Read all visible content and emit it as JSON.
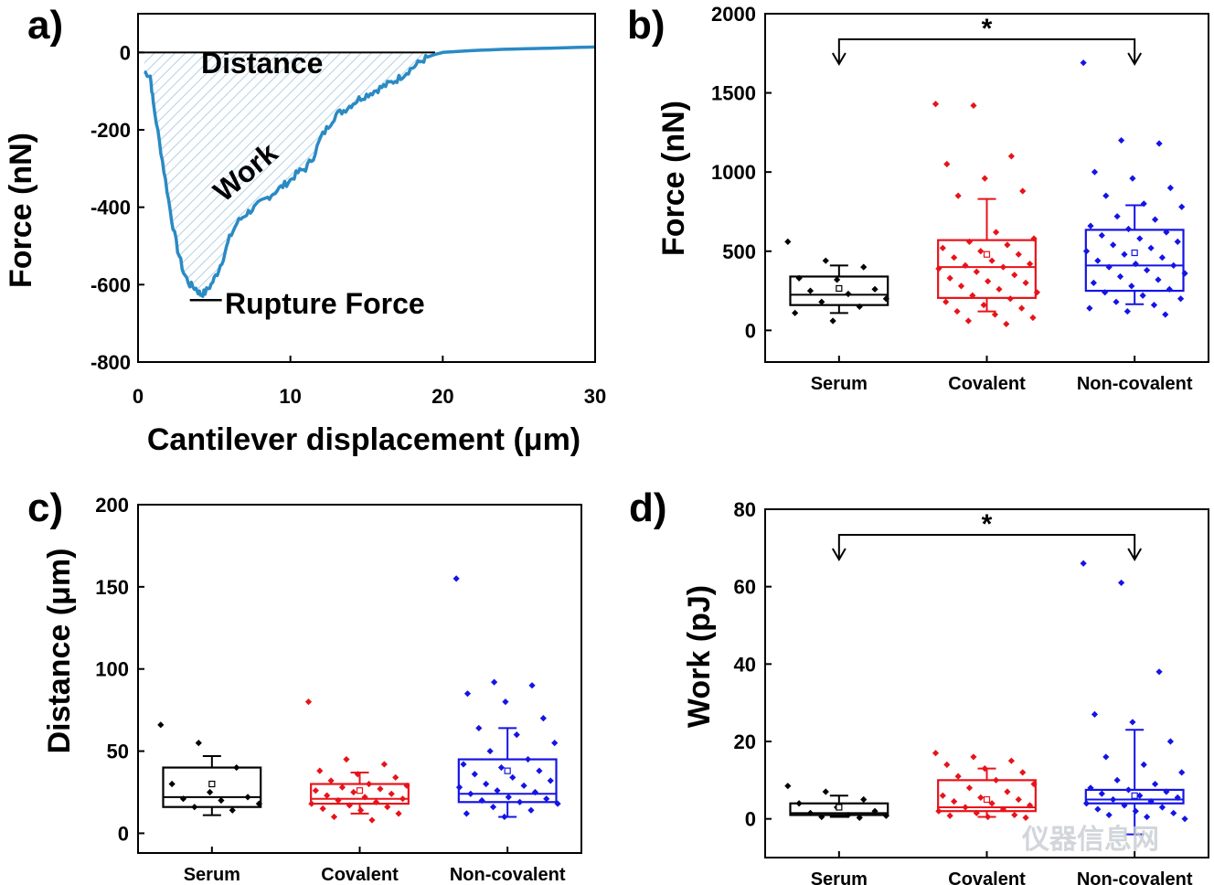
{
  "colors": {
    "serum": "#000000",
    "covalent": "#e8131a",
    "noncovalent": "#1414e6",
    "curve": "#2a8ac4",
    "hatch": "#9cc6e2"
  },
  "watermark": "仪器信息网",
  "chart_data": [
    {
      "panel": "a)",
      "type": "line",
      "xlabel": "Cantilever displacement (μm)",
      "ylabel": "Force (nN)",
      "xlim": [
        0,
        30
      ],
      "ylim": [
        -800,
        100
      ],
      "xticks": [
        0,
        10,
        20,
        30
      ],
      "yticks": [
        0,
        -200,
        -400,
        -600,
        -800
      ],
      "annotations": {
        "distance": "Distance",
        "work": "Work",
        "rupture": "Rupture Force"
      },
      "rupture_force": -640,
      "zero_crossing": 19.5,
      "series": [
        {
          "name": "force curve",
          "x": [
            0.4,
            0.8,
            1.0,
            1.4,
            1.8,
            2.2,
            2.6,
            3.0,
            3.4,
            3.8,
            4.1,
            4.4,
            4.8,
            5.2,
            5.6,
            6.0,
            6.5,
            7.0,
            7.5,
            8.0,
            8.5,
            9.0,
            9.5,
            10.0,
            10.5,
            11.0,
            11.5,
            12.0,
            12.5,
            13.0,
            13.5,
            14.0,
            14.5,
            15.0,
            15.5,
            16.0,
            16.5,
            17.0,
            17.5,
            18.0,
            18.5,
            19.0,
            19.5,
            20.0,
            22.0,
            24.0,
            26.0,
            28.0,
            30.0
          ],
          "y": [
            -50,
            -60,
            -130,
            -230,
            -330,
            -430,
            -510,
            -570,
            -600,
            -610,
            -625,
            -620,
            -600,
            -570,
            -530,
            -480,
            -440,
            -420,
            -405,
            -390,
            -375,
            -360,
            -345,
            -330,
            -310,
            -300,
            -270,
            -220,
            -190,
            -160,
            -150,
            -135,
            -120,
            -110,
            -100,
            -90,
            -80,
            -70,
            -55,
            -40,
            -25,
            -12,
            -5,
            0,
            5,
            8,
            10,
            12,
            14
          ]
        }
      ]
    },
    {
      "panel": "b)",
      "type": "box",
      "ylabel": "Force (nN)",
      "ylim": [
        -200,
        2000
      ],
      "yticks": [
        0,
        500,
        1000,
        1500,
        2000
      ],
      "categories": [
        "Serum",
        "Covalent",
        "Non-covalent"
      ],
      "significance": {
        "from": "Serum",
        "to": "Non-covalent",
        "label": "*"
      },
      "boxes": [
        {
          "q1": 160,
          "median": 225,
          "q3": 340,
          "whisker_low": 110,
          "whisker_high": 410,
          "mean": 265,
          "points": [
            560,
            440,
            400,
            330,
            320,
            260,
            250,
            230,
            200,
            180,
            150,
            110,
            60
          ]
        },
        {
          "q1": 205,
          "median": 400,
          "q3": 570,
          "whisker_low": 120,
          "whisker_high": 830,
          "mean": 480,
          "points": [
            1430,
            1420,
            1100,
            1050,
            960,
            880,
            850,
            620,
            580,
            560,
            540,
            520,
            500,
            480,
            460,
            440,
            420,
            410,
            400,
            390,
            370,
            350,
            330,
            310,
            300,
            280,
            260,
            240,
            220,
            200,
            180,
            160,
            140,
            120,
            100,
            80,
            60,
            40
          ]
        },
        {
          "q1": 250,
          "median": 410,
          "q3": 635,
          "whisker_low": 165,
          "whisker_high": 790,
          "mean": 490,
          "points": [
            1690,
            1200,
            1180,
            1000,
            960,
            900,
            850,
            800,
            780,
            720,
            700,
            660,
            640,
            620,
            600,
            580,
            560,
            540,
            520,
            500,
            480,
            460,
            440,
            420,
            410,
            400,
            380,
            360,
            340,
            320,
            300,
            280,
            260,
            240,
            220,
            200,
            180,
            160,
            140,
            120,
            100
          ]
        }
      ]
    },
    {
      "panel": "c)",
      "type": "box",
      "ylabel": "Distance (μm)",
      "ylim": [
        -12,
        200
      ],
      "yticks": [
        0,
        50,
        100,
        150,
        200
      ],
      "categories": [
        "Serum",
        "Covalent",
        "Non-covalent"
      ],
      "boxes": [
        {
          "q1": 16,
          "median": 22,
          "q3": 40,
          "whisker_low": 11,
          "whisker_high": 47,
          "mean": 30,
          "points": [
            66,
            55,
            40,
            30,
            25,
            22,
            21,
            20,
            18,
            16,
            14
          ]
        },
        {
          "q1": 18,
          "median": 21,
          "q3": 30,
          "whisker_low": 12,
          "whisker_high": 37,
          "mean": 26,
          "points": [
            80,
            45,
            42,
            38,
            36,
            34,
            32,
            30,
            29,
            28,
            27,
            26,
            25,
            24,
            23,
            22,
            21,
            20,
            19,
            18,
            17,
            16,
            15,
            14,
            12,
            10,
            8
          ]
        },
        {
          "q1": 19,
          "median": 24,
          "q3": 45,
          "whisker_low": 10,
          "whisker_high": 64,
          "mean": 38,
          "points": [
            155,
            92,
            90,
            85,
            80,
            70,
            64,
            60,
            55,
            50,
            45,
            42,
            40,
            38,
            36,
            34,
            32,
            30,
            29,
            28,
            26,
            25,
            24,
            22,
            21,
            20,
            19,
            18,
            16,
            14,
            12,
            10
          ]
        }
      ]
    },
    {
      "panel": "d)",
      "type": "box",
      "ylabel": "Work (pJ)",
      "ylim": [
        -10,
        80
      ],
      "yticks": [
        0,
        20,
        40,
        60,
        80
      ],
      "categories": [
        "Serum",
        "Covalent",
        "Non-covalent"
      ],
      "significance": {
        "from": "Serum",
        "to": "Non-covalent",
        "label": "*"
      },
      "boxes": [
        {
          "q1": 1,
          "median": 1.5,
          "q3": 4,
          "whisker_low": 0.5,
          "whisker_high": 6,
          "mean": 3,
          "points": [
            8.5,
            7,
            5,
            4,
            3,
            2,
            1.5,
            1,
            0.8,
            0.5,
            0.3
          ]
        },
        {
          "q1": 2,
          "median": 3,
          "q3": 10,
          "whisker_low": 0.5,
          "whisker_high": 13,
          "mean": 5,
          "points": [
            17,
            16,
            15,
            14,
            13,
            12,
            11,
            10,
            9,
            8,
            7,
            6,
            5.5,
            5,
            4.5,
            4,
            3.5,
            3,
            2.5,
            2,
            1.5,
            1,
            0.8,
            0.5,
            0.3
          ]
        },
        {
          "q1": 4,
          "median": 5,
          "q3": 7.5,
          "whisker_low": -4,
          "whisker_high": 23,
          "mean": 6,
          "points": [
            66,
            61,
            38,
            27,
            25,
            20,
            16,
            14,
            12,
            10,
            9,
            8,
            7.5,
            7,
            6.5,
            6,
            5.5,
            5,
            4.5,
            4,
            3.5,
            3,
            2.5,
            2,
            1.5,
            1,
            0.5,
            0
          ]
        }
      ]
    }
  ]
}
